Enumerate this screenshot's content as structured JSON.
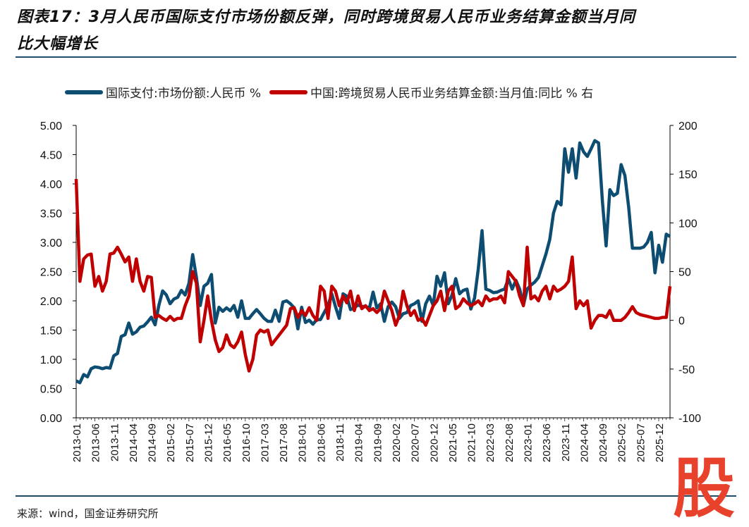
{
  "title": {
    "line1": "图表17：3月人民币国际支付市场份额反弹，同时跨境贸易人民币业务结算金额当月同",
    "line2": "比大幅增长"
  },
  "source": "来源：wind，国金证券研究所",
  "logo_text": "股",
  "colors": {
    "blue": "#0e4d72",
    "red": "#c00000",
    "rule": "#1d4e6e",
    "logo": "#e8412c"
  },
  "chart_data": {
    "type": "line",
    "x_start": "2013-01",
    "x_end": "2026-03",
    "x_tick_labels": [
      "2013-01",
      "2013-06",
      "2013-11",
      "2014-04",
      "2014-09",
      "2015-02",
      "2015-07",
      "2015-12",
      "2016-05",
      "2016-10",
      "2017-03",
      "2017-08",
      "2018-01",
      "2018-06",
      "2018-11",
      "2019-04",
      "2019-09",
      "2020-02",
      "2020-07",
      "2020-12",
      "2021-05",
      "2021-10",
      "2022-03",
      "2022-08",
      "2023-01",
      "2023-06",
      "2023-11",
      "2024-04",
      "2024-09",
      "2025-02",
      "2025-07",
      "2025-12"
    ],
    "left_axis": {
      "ylim": [
        0,
        5
      ],
      "ticks": [
        "0.00",
        "0.50",
        "1.00",
        "1.50",
        "2.00",
        "2.50",
        "3.00",
        "3.50",
        "4.00",
        "4.50",
        "5.00"
      ]
    },
    "right_axis": {
      "ylim": [
        -100,
        200
      ],
      "ticks": [
        "-100",
        "-50",
        "0",
        "50",
        "100",
        "150",
        "200"
      ]
    },
    "series": [
      {
        "name": "国际支付:市场份额:人民币 %",
        "axis": "left",
        "color": "#0e4d72",
        "values": [
          0.63,
          0.6,
          0.74,
          0.7,
          0.84,
          0.87,
          0.86,
          0.84,
          0.86,
          0.85,
          1.06,
          1.1,
          1.39,
          1.42,
          1.62,
          1.43,
          1.47,
          1.55,
          1.57,
          1.64,
          1.72,
          1.59,
          1.92,
          2.17,
          2.1,
          1.95,
          2.03,
          2.06,
          2.18,
          2.1,
          2.3,
          2.79,
          2.4,
          1.92,
          2.25,
          2.3,
          2.45,
          1.62,
          1.89,
          1.82,
          1.88,
          1.83,
          1.92,
          1.72,
          2.0,
          1.7,
          1.7,
          1.78,
          1.85,
          1.78,
          1.7,
          1.65,
          1.65,
          1.84,
          1.65,
          1.98,
          2.0,
          1.95,
          1.88,
          1.52,
          1.89,
          1.63,
          1.67,
          1.6,
          1.68,
          1.68,
          1.8,
          1.92,
          2.12,
          1.9,
          1.7,
          2.12,
          2.08,
          1.85,
          1.88,
          1.93,
          1.9,
          1.91,
          1.87,
          2.15,
          1.88,
          1.95,
          1.65,
          1.9,
          1.98,
          1.9,
          1.7,
          1.78,
          1.8,
          1.92,
          1.95,
          2.0,
          1.65,
          1.95,
          2.08,
          1.92,
          2.42,
          2.25,
          2.48,
          1.95,
          2.1,
          2.38,
          2.12,
          2.18,
          2.2,
          1.86,
          2.05,
          2.55,
          3.2,
          2.2,
          2.18,
          2.14,
          2.15,
          2.18,
          2.2,
          2.38,
          2.2,
          2.35,
          2.2,
          1.93,
          2.2,
          2.27,
          2.32,
          2.4,
          2.6,
          2.8,
          3.05,
          3.5,
          3.7,
          3.64,
          4.6,
          4.2,
          4.6,
          4.1,
          4.7,
          4.55,
          4.47,
          4.6,
          4.74,
          4.7,
          3.71,
          2.94,
          3.9,
          3.8,
          3.84,
          4.33,
          4.14,
          3.6,
          2.9,
          2.9,
          2.9,
          2.92,
          3.0,
          3.17,
          2.48,
          2.95,
          2.66,
          3.14,
          3.1
        ]
      },
      {
        "name": "中国:跨境贸易人民币业务结算金额:当月值:同比 % 右",
        "axis": "right",
        "color": "#c00000",
        "values": [
          145,
          40,
          63,
          67,
          68,
          35,
          45,
          30,
          40,
          68,
          69,
          75,
          68,
          60,
          65,
          40,
          63,
          40,
          30,
          45,
          44,
          3,
          5,
          2,
          0,
          4,
          0,
          2,
          2,
          15,
          25,
          50,
          38,
          -22,
          0,
          25,
          0,
          -20,
          -32,
          -28,
          -15,
          -25,
          -28,
          -22,
          -12,
          -35,
          -52,
          -40,
          -15,
          -10,
          -12,
          -10,
          -25,
          -20,
          -15,
          -10,
          -5,
          12,
          13,
          3,
          10,
          5,
          13,
          5,
          0,
          35,
          30,
          2,
          35,
          30,
          15,
          25,
          18,
          30,
          10,
          25,
          12,
          15,
          10,
          12,
          8,
          12,
          30,
          20,
          10,
          -5,
          5,
          30,
          15,
          5,
          10,
          0,
          2,
          -5,
          5,
          15,
          20,
          30,
          10,
          30,
          35,
          12,
          15,
          22,
          18,
          15,
          17,
          20,
          15,
          25,
          20,
          22,
          22,
          25,
          18,
          50,
          45,
          40,
          25,
          15,
          75,
          22,
          25,
          20,
          30,
          35,
          22,
          35,
          30,
          32,
          35,
          40,
          65,
          12,
          20,
          15,
          20,
          -8,
          0,
          5,
          5,
          3,
          10,
          0,
          0,
          0,
          3,
          8,
          14,
          8,
          6,
          5,
          4,
          3,
          2,
          2,
          3,
          3,
          35
        ]
      }
    ],
    "legend_position": "top",
    "grid": false
  }
}
